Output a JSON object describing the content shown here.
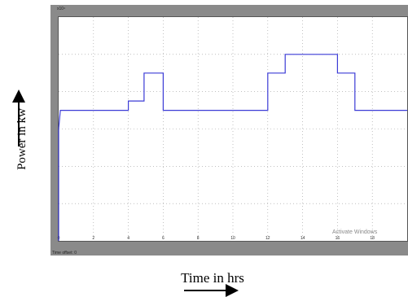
{
  "chart_data": {
    "type": "line",
    "title": "",
    "xlabel": "Time in hrs",
    "ylabel": "Power in kw",
    "xlim": [
      0,
      20
    ],
    "ylim": [
      0,
      6
    ],
    "x_ticks": [
      "0",
      "2",
      "4",
      "6",
      "8",
      "10",
      "12",
      "14",
      "16",
      "18"
    ],
    "y_ticks": [],
    "grid": true,
    "scale_tag": "x10⁴",
    "time_offset_label": "Time offset: 0",
    "series": [
      {
        "color": "#3b3bd6",
        "x": [
          0,
          0,
          0.1,
          4,
          4,
          4.9,
          4.9,
          6,
          6,
          12,
          12,
          13,
          13,
          16,
          16,
          17,
          17,
          20
        ],
        "y": [
          0,
          3,
          3.5,
          3.5,
          3.75,
          3.75,
          4.5,
          4.5,
          3.5,
          3.5,
          4.5,
          4.5,
          5,
          5,
          4.5,
          4.5,
          3.5,
          3.5
        ]
      }
    ]
  },
  "watermark": "Activate Windows"
}
